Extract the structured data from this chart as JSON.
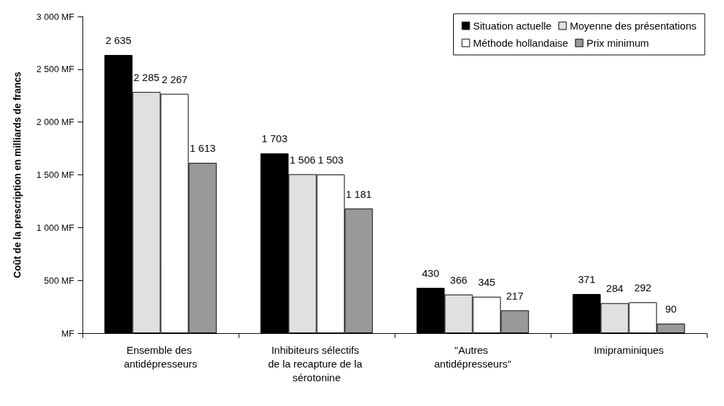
{
  "chart_data": {
    "type": "bar",
    "ylabel": "Coût de la prescription en milliards de francs",
    "categories": [
      "Ensemble des antidépresseurs",
      "Inhibiteurs sélectifs de la recapture de la sérotonine",
      "\"Autres antidépresseurs\"",
      "Imipraminiques"
    ],
    "series": [
      {
        "name": "Situation actuelle",
        "color": "#000000",
        "values": [
          2635,
          1703,
          430,
          371
        ],
        "value_labels": [
          "2 635",
          "1 703",
          "430",
          "371"
        ]
      },
      {
        "name": "Moyenne des présentations",
        "color": "#e0e0e0",
        "values": [
          2285,
          1506,
          366,
          284
        ],
        "value_labels": [
          "2 285",
          "1 506",
          "366",
          "284"
        ]
      },
      {
        "name": "Méthode hollandaise",
        "color": "#ffffff",
        "values": [
          2267,
          1503,
          345,
          292
        ],
        "value_labels": [
          "2 267",
          "1 503",
          "345",
          "292"
        ]
      },
      {
        "name": "Prix minimum",
        "color": "#999999",
        "values": [
          1613,
          1181,
          217,
          90
        ],
        "value_labels": [
          "1 613",
          "1 181",
          "217",
          "90"
        ]
      }
    ],
    "ylim": [
      0,
      3000
    ],
    "yticks": [
      {
        "value": 0,
        "label": "MF"
      },
      {
        "value": 500,
        "label": "500 MF"
      },
      {
        "value": 1000,
        "label": "1 000 MF"
      },
      {
        "value": 1500,
        "label": "1 500 MF"
      },
      {
        "value": 2000,
        "label": "2 000 MF"
      },
      {
        "value": 2500,
        "label": "2 500 MF"
      },
      {
        "value": 3000,
        "label": "3 000 MF"
      }
    ],
    "grid": false,
    "legend": "top right"
  }
}
